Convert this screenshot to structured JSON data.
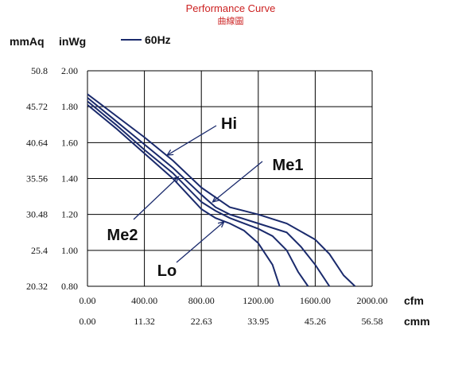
{
  "title": "Performance Curve",
  "subtitle": "曲線圖",
  "y_unit_primary": "mmAq",
  "y_unit_secondary": "inWg",
  "x_unit_primary": "cfm",
  "x_unit_secondary": "cmm",
  "legend_label": "60Hz",
  "colors": {
    "curve": "#1a2a6c",
    "title": "#cc2222",
    "grid": "#000000"
  },
  "chart_data": {
    "type": "line",
    "xlabel": "cfm",
    "ylabel": "inWg",
    "xlim": [
      0,
      2000
    ],
    "ylim": [
      0.8,
      2.0
    ],
    "grid": true,
    "x_ticks": [
      "0.00",
      "400.00",
      "800.00",
      "1200.00",
      "1600.00",
      "2000.00"
    ],
    "x_ticks_secondary": [
      "0.00",
      "11.32",
      "22.63",
      "33.95",
      "45.26",
      "56.58"
    ],
    "y_ticks": [
      "0.80",
      "1.00",
      "1.20",
      "1.40",
      "1.60",
      "1.80",
      "2.00"
    ],
    "y_ticks_secondary": [
      "20.32",
      "25.4",
      "30.48",
      "35.56",
      "40.64",
      "45.72",
      "50.8"
    ],
    "legend": [
      "60Hz"
    ],
    "series": [
      {
        "name": "Hi",
        "points": [
          [
            0,
            1.87
          ],
          [
            200,
            1.75
          ],
          [
            400,
            1.63
          ],
          [
            600,
            1.5
          ],
          [
            800,
            1.35
          ],
          [
            1000,
            1.24
          ],
          [
            1200,
            1.2
          ],
          [
            1400,
            1.15
          ],
          [
            1600,
            1.06
          ],
          [
            1700,
            0.98
          ],
          [
            1800,
            0.86
          ],
          [
            1880,
            0.8
          ]
        ]
      },
      {
        "name": "Me1",
        "points": [
          [
            0,
            1.85
          ],
          [
            200,
            1.72
          ],
          [
            400,
            1.59
          ],
          [
            600,
            1.46
          ],
          [
            800,
            1.31
          ],
          [
            900,
            1.24
          ],
          [
            1000,
            1.2
          ],
          [
            1200,
            1.15
          ],
          [
            1400,
            1.1
          ],
          [
            1500,
            1.02
          ],
          [
            1600,
            0.92
          ],
          [
            1700,
            0.8
          ]
        ]
      },
      {
        "name": "Me2",
        "points": [
          [
            0,
            1.83
          ],
          [
            200,
            1.7
          ],
          [
            400,
            1.56
          ],
          [
            600,
            1.43
          ],
          [
            800,
            1.27
          ],
          [
            900,
            1.22
          ],
          [
            1000,
            1.18
          ],
          [
            1200,
            1.12
          ],
          [
            1300,
            1.08
          ],
          [
            1400,
            1.0
          ],
          [
            1480,
            0.88
          ],
          [
            1550,
            0.8
          ]
        ]
      },
      {
        "name": "Lo",
        "points": [
          [
            0,
            1.81
          ],
          [
            200,
            1.68
          ],
          [
            400,
            1.54
          ],
          [
            600,
            1.4
          ],
          [
            800,
            1.23
          ],
          [
            900,
            1.18
          ],
          [
            1000,
            1.15
          ],
          [
            1100,
            1.11
          ],
          [
            1200,
            1.04
          ],
          [
            1300,
            0.92
          ],
          [
            1350,
            0.8
          ]
        ]
      }
    ],
    "annotations": [
      {
        "text": "Hi",
        "point_to": [
          560,
          1.53
        ]
      },
      {
        "text": "Me1",
        "point_to": [
          880,
          1.27
        ]
      },
      {
        "text": "Me2",
        "point_to": [
          640,
          1.41
        ]
      },
      {
        "text": "Lo",
        "point_to": [
          960,
          1.16
        ]
      }
    ]
  }
}
